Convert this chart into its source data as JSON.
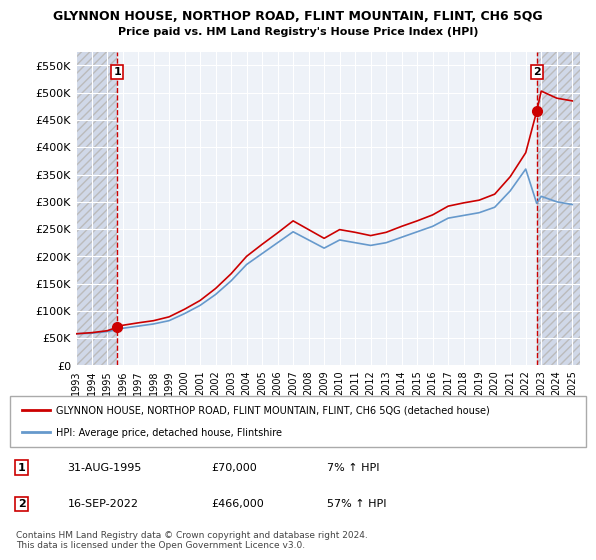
{
  "title": "GLYNNON HOUSE, NORTHOP ROAD, FLINT MOUNTAIN, FLINT, CH6 5QG",
  "subtitle": "Price paid vs. HM Land Registry's House Price Index (HPI)",
  "ylabel_ticks": [
    0,
    50000,
    100000,
    150000,
    200000,
    250000,
    300000,
    350000,
    400000,
    450000,
    500000,
    550000
  ],
  "ylim": [
    0,
    575000
  ],
  "xlim_start": 1993.0,
  "xlim_end": 2025.5,
  "sale1_year": 1995.667,
  "sale1_price": 70000,
  "sale1_label": "1",
  "sale1_date": "31-AUG-1995",
  "sale1_hpi_pct": "7% ↑ HPI",
  "sale2_year": 2022.708,
  "sale2_price": 466000,
  "sale2_label": "2",
  "sale2_date": "16-SEP-2022",
  "sale2_hpi_pct": "57% ↑ HPI",
  "red_line_color": "#cc0000",
  "blue_line_color": "#6699cc",
  "hatch_color": "#cccccc",
  "bg_color": "#dce6f0",
  "plot_bg": "#eef2f8",
  "legend_line1": "GLYNNON HOUSE, NORTHOP ROAD, FLINT MOUNTAIN, FLINT, CH6 5QG (detached house)",
  "legend_line2": "HPI: Average price, detached house, Flintshire",
  "footer": "Contains HM Land Registry data © Crown copyright and database right 2024.\nThis data is licensed under the Open Government Licence v3.0.",
  "hpi_years": [
    1993,
    1994,
    1995,
    1995.667,
    1996,
    1997,
    1998,
    1999,
    2000,
    2001,
    2002,
    2003,
    2004,
    2005,
    2006,
    2007,
    2008,
    2009,
    2010,
    2011,
    2012,
    2013,
    2014,
    2015,
    2016,
    2017,
    2018,
    2019,
    2020,
    2021,
    2022,
    2022.708,
    2023,
    2024,
    2025
  ],
  "hpi_values": [
    58000,
    59000,
    62000,
    65500,
    68000,
    72000,
    76000,
    82000,
    95000,
    110000,
    130000,
    155000,
    185000,
    205000,
    225000,
    245000,
    230000,
    215000,
    230000,
    225000,
    220000,
    225000,
    235000,
    245000,
    255000,
    270000,
    275000,
    280000,
    290000,
    320000,
    360000,
    297000,
    310000,
    300000,
    295000
  ],
  "red_years": [
    1993,
    1994,
    1995,
    1995.667,
    1996,
    1997,
    1998,
    1999,
    2000,
    2001,
    2002,
    2003,
    2004,
    2005,
    2006,
    2007,
    2008,
    2009,
    2010,
    2011,
    2012,
    2013,
    2014,
    2015,
    2016,
    2017,
    2018,
    2019,
    2020,
    2021,
    2022,
    2022.708,
    2023,
    2024,
    2025
  ],
  "red_values": [
    58000,
    60000,
    63500,
    70000,
    73500,
    78000,
    82000,
    89000,
    103000,
    119000,
    141000,
    168000,
    200000,
    222000,
    243000,
    265000,
    249000,
    233000,
    249000,
    244000,
    238000,
    244000,
    255000,
    265000,
    276000,
    292000,
    298000,
    303000,
    314000,
    346000,
    390000,
    466000,
    503000,
    490000,
    485000
  ],
  "xtick_years": [
    1993,
    1994,
    1995,
    1996,
    1997,
    1998,
    1999,
    2000,
    2001,
    2002,
    2003,
    2004,
    2005,
    2006,
    2007,
    2008,
    2009,
    2010,
    2011,
    2012,
    2013,
    2014,
    2015,
    2016,
    2017,
    2018,
    2019,
    2020,
    2021,
    2022,
    2023,
    2024,
    2025
  ]
}
